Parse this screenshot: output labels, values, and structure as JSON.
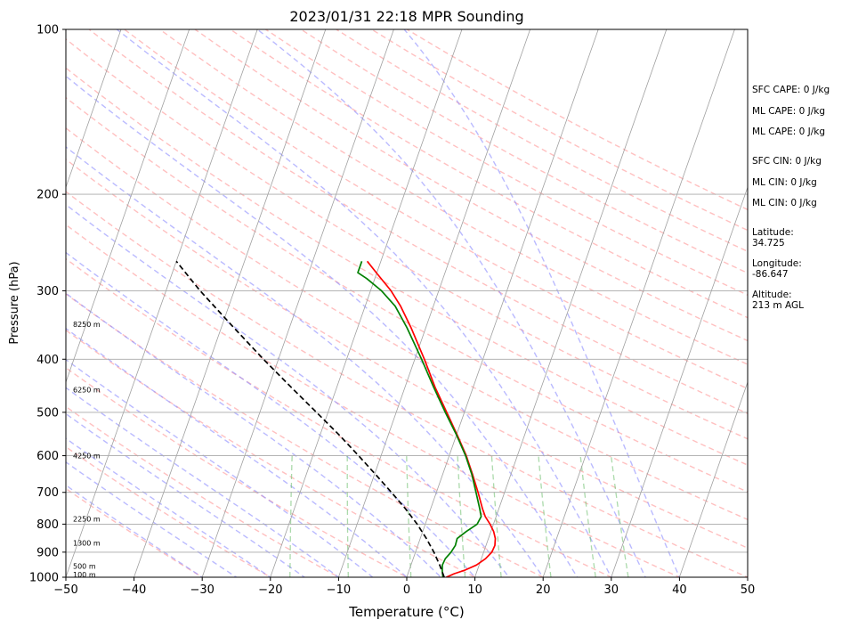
{
  "chart_data": {
    "type": "line",
    "title": "2023/01/31 22:18 MPR Sounding",
    "xlabel": "Temperature (°C)",
    "ylabel": "Pressure (hPa)",
    "xlim": [
      -50,
      50
    ],
    "ylim": [
      1000,
      100
    ],
    "y_scale": "log",
    "grid": true,
    "x_ticks": [
      -50,
      -40,
      -30,
      -20,
      -10,
      0,
      10,
      20,
      30,
      40,
      50
    ],
    "y_ticks": [
      1000,
      900,
      800,
      700,
      600,
      500,
      400,
      300,
      200,
      100
    ],
    "series": [
      {
        "role": "temperature",
        "color": "#ff0000",
        "points": [
          {
            "p": 1000,
            "t": 5.8
          },
          {
            "p": 985,
            "t": 6.8
          },
          {
            "p": 970,
            "t": 8.2
          },
          {
            "p": 950,
            "t": 9.6
          },
          {
            "p": 925,
            "t": 10.6
          },
          {
            "p": 900,
            "t": 11.2
          },
          {
            "p": 875,
            "t": 11.3
          },
          {
            "p": 850,
            "t": 11.0
          },
          {
            "p": 825,
            "t": 10.4
          },
          {
            "p": 800,
            "t": 9.5
          },
          {
            "p": 775,
            "t": 8.4
          },
          {
            "p": 750,
            "t": 7.6
          },
          {
            "p": 700,
            "t": 6.1
          },
          {
            "p": 650,
            "t": 4.4
          },
          {
            "p": 600,
            "t": 2.5
          },
          {
            "p": 550,
            "t": 0.1
          },
          {
            "p": 500,
            "t": -2.6
          },
          {
            "p": 450,
            "t": -5.6
          },
          {
            "p": 400,
            "t": -8.6
          },
          {
            "p": 350,
            "t": -12.2
          },
          {
            "p": 320,
            "t": -14.8
          },
          {
            "p": 300,
            "t": -17.0
          },
          {
            "p": 280,
            "t": -19.8
          },
          {
            "p": 265,
            "t": -22.0
          }
        ]
      },
      {
        "role": "dewpoint",
        "color": "#008000",
        "points": [
          {
            "p": 1000,
            "t": 5.3
          },
          {
            "p": 975,
            "t": 4.9
          },
          {
            "p": 950,
            "t": 4.6
          },
          {
            "p": 925,
            "t": 4.7
          },
          {
            "p": 900,
            "t": 5.2
          },
          {
            "p": 875,
            "t": 5.5
          },
          {
            "p": 850,
            "t": 5.4
          },
          {
            "p": 825,
            "t": 6.4
          },
          {
            "p": 800,
            "t": 7.6
          },
          {
            "p": 775,
            "t": 7.8
          },
          {
            "p": 750,
            "t": 7.2
          },
          {
            "p": 700,
            "t": 5.8
          },
          {
            "p": 650,
            "t": 4.3
          },
          {
            "p": 600,
            "t": 2.4
          },
          {
            "p": 550,
            "t": 0.0
          },
          {
            "p": 500,
            "t": -2.8
          },
          {
            "p": 450,
            "t": -5.8
          },
          {
            "p": 400,
            "t": -9.0
          },
          {
            "p": 350,
            "t": -12.8
          },
          {
            "p": 320,
            "t": -15.6
          },
          {
            "p": 300,
            "t": -18.4
          },
          {
            "p": 285,
            "t": -21.2
          },
          {
            "p": 278,
            "t": -22.8
          },
          {
            "p": 265,
            "t": -22.8
          }
        ]
      },
      {
        "role": "parcel",
        "color": "#000000",
        "style": "dashed",
        "points": [
          {
            "p": 1000,
            "t": 5.5
          },
          {
            "p": 950,
            "t": 4.2
          },
          {
            "p": 900,
            "t": 2.7
          },
          {
            "p": 850,
            "t": 0.9
          },
          {
            "p": 800,
            "t": -1.2
          },
          {
            "p": 750,
            "t": -3.7
          },
          {
            "p": 700,
            "t": -6.6
          },
          {
            "p": 650,
            "t": -9.8
          },
          {
            "p": 600,
            "t": -13.3
          },
          {
            "p": 550,
            "t": -17.2
          },
          {
            "p": 500,
            "t": -21.7
          },
          {
            "p": 450,
            "t": -26.7
          },
          {
            "p": 400,
            "t": -32.2
          },
          {
            "p": 350,
            "t": -38.2
          },
          {
            "p": 300,
            "t": -45.0
          },
          {
            "p": 265,
            "t": -50.0
          }
        ]
      }
    ],
    "height_labels": [
      {
        "p": 988,
        "text": "100 m"
      },
      {
        "p": 955,
        "text": "500 m"
      },
      {
        "p": 866,
        "text": "1300 m"
      },
      {
        "p": 782,
        "text": "2250 m"
      },
      {
        "p": 600,
        "text": "4250 m"
      },
      {
        "p": 455,
        "text": "6250 m"
      },
      {
        "p": 345,
        "text": "8250 m"
      }
    ],
    "annotations": {
      "sfc_cape": "SFC CAPE: 0 J/kg",
      "ml_cape_1": "ML CAPE: 0 J/kg",
      "ml_cape_2": "ML CAPE: 0 J/kg",
      "sfc_cin": "SFC CIN: 0 J/kg",
      "ml_cin_1": "ML CIN: 0 J/kg",
      "ml_cin_2": "ML CIN: 0 J/kg",
      "latitude_label": "Latitude:",
      "latitude_value": "34.725",
      "longitude_label": "Longitude:",
      "longitude_value": "-86.647",
      "altitude_label": "Altitude:",
      "altitude_value": "213 m AGL"
    },
    "reference_lines": {
      "isotherm_color": "#a0a0a0",
      "dry_adiabat_color": "#ff8c8c",
      "moist_adiabat_color": "#8c8cff",
      "mixing_ratio_color": "#66bb66",
      "mixing_ratio_values": [
        1,
        2,
        4,
        7,
        10,
        16,
        24,
        32
      ]
    }
  }
}
